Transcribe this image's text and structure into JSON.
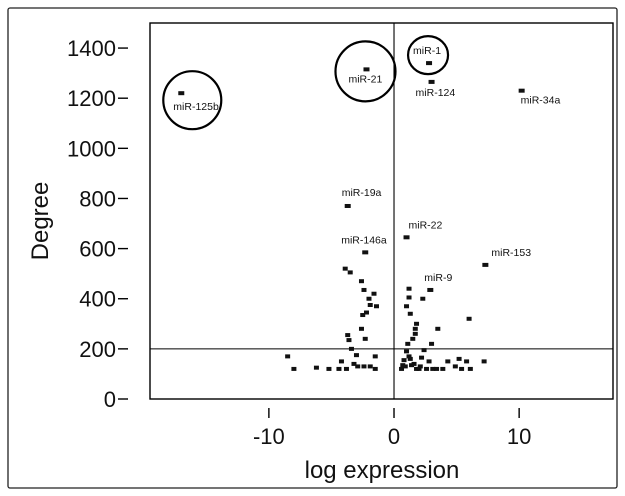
{
  "chart_data": {
    "type": "scatter",
    "title": "",
    "xlabel": "log expression",
    "ylabel": "Degree",
    "xlim": [
      -19.5,
      17.5
    ],
    "ylim": [
      0,
      1500
    ],
    "x_ticks": [
      {
        "value": -10,
        "label": "-10"
      },
      {
        "value": 0,
        "label": "0"
      },
      {
        "value": 10,
        "label": "10"
      }
    ],
    "y_ticks": [
      {
        "value": 0,
        "label": "0"
      },
      {
        "value": 200,
        "label": "200"
      },
      {
        "value": 400,
        "label": "400"
      },
      {
        "value": 600,
        "label": "600"
      },
      {
        "value": 800,
        "label": "800"
      },
      {
        "value": 1000,
        "label": "1000"
      },
      {
        "value": 1200,
        "label": "1200"
      },
      {
        "value": 1400,
        "label": "1400"
      }
    ],
    "reference_lines": {
      "x": 0,
      "y": 200
    },
    "labeled_points": [
      {
        "label": "miR-125b",
        "x": -17.0,
        "y": 1220,
        "circled": true
      },
      {
        "label": "miR-21",
        "x": -2.2,
        "y": 1315,
        "circled": true
      },
      {
        "label": "miR-1",
        "x": 2.8,
        "y": 1340,
        "circled": true
      },
      {
        "label": "miR-124",
        "x": 3.0,
        "y": 1265,
        "circled": false
      },
      {
        "label": "miR-34a",
        "x": 10.2,
        "y": 1230,
        "circled": false
      },
      {
        "label": "miR-19a",
        "x": -3.7,
        "y": 770,
        "circled": false
      },
      {
        "label": "miR-22",
        "x": 1.0,
        "y": 645,
        "circled": false
      },
      {
        "label": "miR-146a",
        "x": -2.3,
        "y": 585,
        "circled": false
      },
      {
        "label": "miR-153",
        "x": 7.3,
        "y": 535,
        "circled": false
      },
      {
        "label": "miR-9",
        "x": 2.9,
        "y": 435,
        "circled": false
      }
    ],
    "points": [
      [
        -3.9,
        520
      ],
      [
        -3.5,
        505
      ],
      [
        -2.6,
        470
      ],
      [
        -2.4,
        435
      ],
      [
        -1.6,
        420
      ],
      [
        -2.0,
        400
      ],
      [
        -1.9,
        375
      ],
      [
        -1.4,
        370
      ],
      [
        -2.2,
        345
      ],
      [
        -2.5,
        335
      ],
      [
        -2.6,
        280
      ],
      [
        -2.3,
        240
      ],
      [
        -3.7,
        255
      ],
      [
        -3.6,
        235
      ],
      [
        -3.4,
        200
      ],
      [
        -3.2,
        140
      ],
      [
        -2.9,
        130
      ],
      [
        -4.4,
        120
      ],
      [
        -3.8,
        120
      ],
      [
        -2.4,
        130
      ],
      [
        -1.9,
        130
      ],
      [
        -1.5,
        120
      ],
      [
        -1.5,
        170
      ],
      [
        -4.2,
        150
      ],
      [
        -3.0,
        175
      ],
      [
        -5.2,
        120
      ],
      [
        -6.2,
        125
      ],
      [
        -8.0,
        120
      ],
      [
        -8.5,
        170
      ],
      [
        1.2,
        440
      ],
      [
        1.2,
        405
      ],
      [
        2.3,
        400
      ],
      [
        1.3,
        340
      ],
      [
        1.8,
        300
      ],
      [
        1.0,
        370
      ],
      [
        1.7,
        280
      ],
      [
        1.7,
        260
      ],
      [
        1.5,
        240
      ],
      [
        1.1,
        220
      ],
      [
        1.0,
        190
      ],
      [
        1.2,
        170
      ],
      [
        1.6,
        140
      ],
      [
        0.8,
        155
      ],
      [
        0.9,
        130
      ],
      [
        0.6,
        120
      ],
      [
        0.7,
        135
      ],
      [
        1.3,
        160
      ],
      [
        2.2,
        165
      ],
      [
        2.8,
        150
      ],
      [
        3.1,
        120
      ],
      [
        3.4,
        120
      ],
      [
        3.9,
        120
      ],
      [
        2.6,
        120
      ],
      [
        2.1,
        130
      ],
      [
        2.0,
        120
      ],
      [
        1.8,
        120
      ],
      [
        2.4,
        195
      ],
      [
        3.0,
        220
      ],
      [
        3.5,
        280
      ],
      [
        4.3,
        150
      ],
      [
        5.4,
        120
      ],
      [
        5.8,
        150
      ],
      [
        6.0,
        320
      ],
      [
        6.1,
        120
      ],
      [
        7.2,
        150
      ],
      [
        5.2,
        160
      ],
      [
        4.9,
        130
      ],
      [
        1.4,
        135
      ]
    ]
  }
}
